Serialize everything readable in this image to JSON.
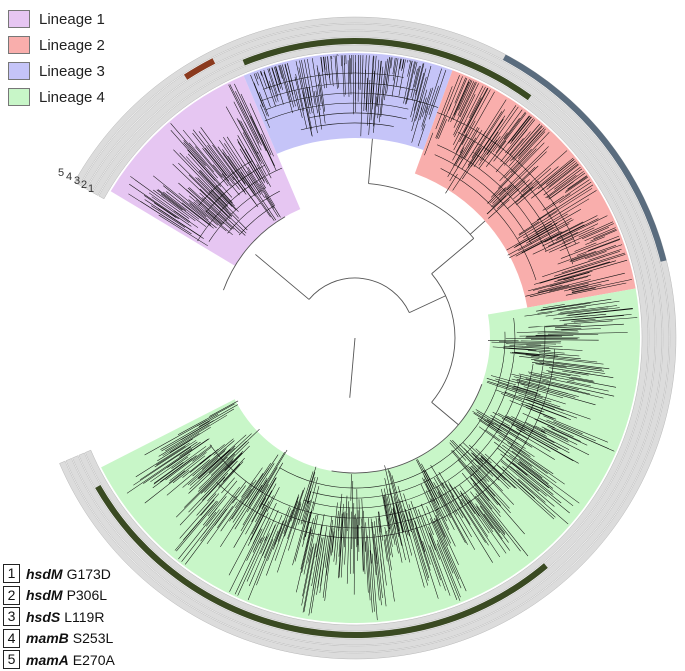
{
  "lineages": [
    {
      "label": "Lineage 1",
      "color": "#e6c6f2"
    },
    {
      "label": "Lineage 2",
      "color": "#f9aeac"
    },
    {
      "label": "Lineage 3",
      "color": "#c5c4f8"
    },
    {
      "label": "Lineage 4",
      "color": "#c8f6c8"
    }
  ],
  "mutations": [
    {
      "num": "1",
      "gene": "hsdM",
      "change": "G173D"
    },
    {
      "num": "2",
      "gene": "hsdM",
      "change": "P306L"
    },
    {
      "num": "3",
      "gene": "hsdS",
      "change": "L119R"
    },
    {
      "num": "4",
      "gene": "mamB",
      "change": "S253L"
    },
    {
      "num": "5",
      "gene": "mamA",
      "change": "E270A"
    }
  ],
  "ring_labels": [
    "5",
    "4",
    "3",
    "2",
    "1"
  ],
  "colors": {
    "ring_background": "#dcdcdc",
    "ring_dark_green": "#3a4a22",
    "ring_brown": "#8b3a1e",
    "ring_slate": "#5a6c7e",
    "branch": "#555555",
    "leaf": "#111111"
  }
}
